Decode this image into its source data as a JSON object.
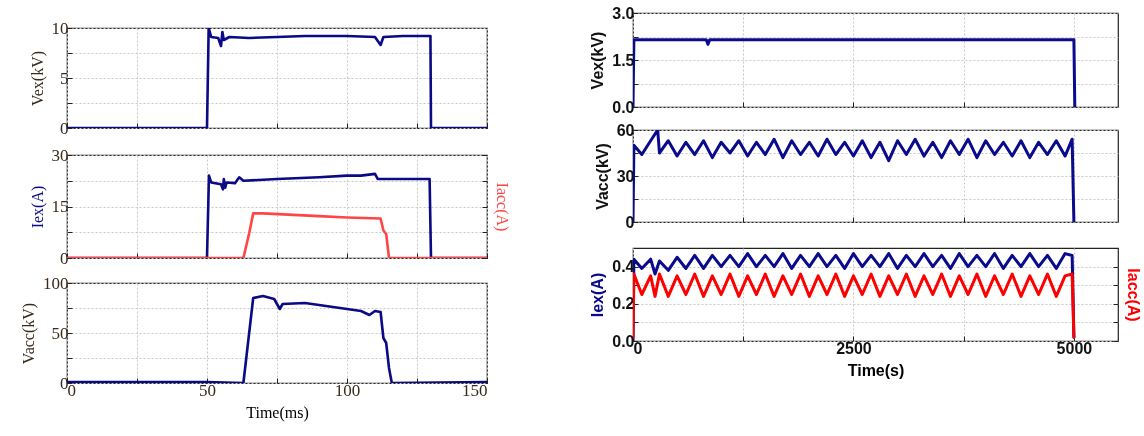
{
  "chart_data": [
    {
      "type": "line",
      "ylabel": "Vex(kV)",
      "xlim": [
        0,
        150
      ],
      "xticks": [
        0,
        {
          "value": 25,
          "label": null
        },
        50,
        {
          "value": 75,
          "label": null
        },
        100,
        {
          "value": 125,
          "label": null
        },
        150
      ],
      "ylim": [
        0,
        10
      ],
      "yticks": [
        0,
        {
          "value": 2.5,
          "label": null
        },
        5,
        {
          "value": 7.5,
          "label": null
        },
        10
      ],
      "grid": true,
      "tick_labels": "y",
      "series": [
        {
          "color": "#0a0a85",
          "x": [
            0,
            50,
            50.6,
            51.5,
            54,
            55,
            55.5,
            56,
            58,
            65,
            75,
            85,
            95,
            100,
            110,
            112,
            113,
            120,
            129.8,
            130,
            150
          ],
          "values": [
            0,
            0,
            10,
            9.1,
            9.0,
            8.2,
            9.6,
            8.8,
            9.1,
            9.0,
            9.1,
            9.2,
            9.2,
            9.2,
            9.1,
            8.3,
            9.1,
            9.2,
            9.2,
            0,
            0
          ]
        }
      ]
    },
    {
      "type": "line",
      "ylabel": "Iex(A)",
      "y2label": "Iacc(A)",
      "xlim": [
        0,
        150
      ],
      "xticks": [
        0,
        {
          "value": 25,
          "label": null
        },
        50,
        {
          "value": 75,
          "label": null
        },
        100,
        {
          "value": 125,
          "label": null
        },
        150
      ],
      "ylim": [
        0,
        30
      ],
      "yticks": [
        0,
        {
          "value": 7.5,
          "label": null
        },
        15,
        {
          "value": 22.5,
          "label": null
        },
        30
      ],
      "grid": true,
      "tick_labels": "y",
      "series": [
        {
          "color": "#0a0a85",
          "x": [
            0,
            50,
            50.7,
            51.5,
            55,
            55.7,
            56,
            56.5,
            57,
            60,
            61.5,
            63,
            75,
            90,
            100,
            105,
            110,
            111,
            115,
            129.5,
            130,
            150
          ],
          "values": [
            0,
            0,
            24,
            22,
            21.5,
            20,
            23,
            20.5,
            22,
            21.8,
            23.5,
            22.5,
            23,
            23.5,
            24,
            24,
            24.5,
            23,
            23,
            23,
            0,
            0
          ]
        },
        {
          "color": "#ff4545",
          "x": [
            0,
            63,
            65,
            66.5,
            70,
            90,
            100,
            112,
            113,
            114,
            115,
            150
          ],
          "values": [
            0,
            0,
            7,
            13,
            13,
            12.2,
            11.8,
            11.5,
            8,
            7,
            0,
            0
          ]
        }
      ]
    },
    {
      "type": "line",
      "ylabel": "Vacc(kV)",
      "xlabel": "Time(ms)",
      "xlim": [
        0,
        150
      ],
      "xticks": [
        0,
        {
          "value": 25,
          "label": null
        },
        50,
        {
          "value": 75,
          "label": null
        },
        100,
        {
          "value": 125,
          "label": null
        },
        150
      ],
      "ylim": [
        0,
        100
      ],
      "yticks": [
        0,
        {
          "value": 25,
          "label": null
        },
        50,
        {
          "value": 75,
          "label": null
        },
        100
      ],
      "grid": true,
      "series": [
        {
          "color": "#0a0a85",
          "x": [
            0,
            50,
            63,
            66.5,
            70,
            74,
            76,
            77,
            85,
            95,
            100,
            105,
            108,
            110,
            112,
            113,
            114,
            115,
            116,
            150
          ],
          "values": [
            1,
            1,
            0,
            85,
            87,
            84,
            74,
            79,
            80,
            76,
            74,
            72,
            68,
            72,
            71,
            45,
            40,
            15,
            0,
            1
          ]
        }
      ]
    },
    {
      "type": "line",
      "ylabel": "Vex(kV)",
      "xlim": [
        0,
        5500
      ],
      "xticks": [
        0,
        {
          "value": 1250,
          "label": null
        },
        2500,
        {
          "value": 3750,
          "label": null
        },
        5000
      ],
      "ylim": [
        0,
        3
      ],
      "yticks": [
        {
          "value": 0,
          "label": "0.0"
        },
        {
          "value": 0.75,
          "label": null
        },
        1.5,
        {
          "value": 2.25,
          "label": null
        },
        {
          "value": 3,
          "label": "3.0"
        }
      ],
      "grid": true,
      "tick_labels": "y",
      "series": [
        {
          "color": "#0a0a8c",
          "x": [
            0,
            10,
            830,
            850,
            870,
            5000,
            5010
          ],
          "values": [
            0,
            2.15,
            2.15,
            2.0,
            2.15,
            2.15,
            0
          ]
        }
      ]
    },
    {
      "type": "line",
      "ylabel": "Vacc(kV)",
      "xlim": [
        0,
        5500
      ],
      "xticks": [
        0,
        {
          "value": 1250,
          "label": null
        },
        2500,
        {
          "value": 3750,
          "label": null
        },
        5000
      ],
      "ylim": [
        0,
        60
      ],
      "yticks": [
        0,
        {
          "value": 15,
          "label": null
        },
        30,
        {
          "value": 45,
          "label": null
        },
        60
      ],
      "grid": true,
      "tick_labels": "y",
      "series": [
        {
          "color": "#0a0a8c",
          "x": [
            0,
            10,
            100,
            200,
            280,
            300,
            400,
            500,
            600,
            700,
            800,
            900,
            1000,
            1100,
            1200,
            1300,
            1400,
            1500,
            1600,
            1700,
            1800,
            1900,
            2000,
            2100,
            2200,
            2300,
            2400,
            2500,
            2600,
            2700,
            2800,
            2900,
            3000,
            3100,
            3200,
            3300,
            3400,
            3500,
            3600,
            3700,
            3800,
            3900,
            4000,
            4100,
            4200,
            4300,
            4400,
            4500,
            4600,
            4700,
            4800,
            4900,
            4980,
            5000
          ],
          "values": [
            0,
            50,
            44,
            53,
            60,
            45,
            53,
            43,
            52,
            44,
            53,
            42,
            52,
            45,
            53,
            43,
            52,
            44,
            54,
            42,
            53,
            44,
            52,
            43,
            54,
            44,
            52,
            43,
            53,
            42,
            52,
            40,
            53,
            44,
            54,
            43,
            52,
            42,
            53,
            44,
            54,
            42,
            53,
            44,
            52,
            43,
            53,
            42,
            52,
            44,
            53,
            43,
            54,
            0
          ]
        }
      ]
    },
    {
      "type": "line",
      "ylabel": "Iex(A)",
      "y2label": "Iacc(A)",
      "xlabel": "Time(s)",
      "xlim": [
        0,
        5500
      ],
      "xticks": [
        0,
        {
          "value": 1250,
          "label": null
        },
        2500,
        {
          "value": 3750,
          "label": null
        },
        5000
      ],
      "ylim": [
        0,
        0.5
      ],
      "yticks": [
        {
          "value": 0,
          "label": "0.0"
        },
        {
          "value": 0.1,
          "label": null
        },
        0.2,
        {
          "value": 0.3,
          "label": null
        },
        0.4
      ],
      "grid": true,
      "series": [
        {
          "color": "#0a0a8c",
          "x": [
            0,
            10,
            100,
            200,
            250,
            300,
            400,
            500,
            600,
            700,
            800,
            900,
            1000,
            1100,
            1200,
            1300,
            1400,
            1500,
            1600,
            1700,
            1800,
            1900,
            2000,
            2100,
            2200,
            2300,
            2400,
            2500,
            2600,
            2700,
            2800,
            2900,
            3000,
            3100,
            3200,
            3300,
            3400,
            3500,
            3600,
            3700,
            3800,
            3900,
            4000,
            4100,
            4200,
            4300,
            4400,
            4500,
            4600,
            4700,
            4800,
            4900,
            4980,
            5000
          ],
          "values": [
            0,
            0.44,
            0.39,
            0.44,
            0.36,
            0.43,
            0.38,
            0.45,
            0.39,
            0.46,
            0.39,
            0.46,
            0.4,
            0.46,
            0.4,
            0.47,
            0.4,
            0.46,
            0.4,
            0.47,
            0.39,
            0.46,
            0.4,
            0.47,
            0.4,
            0.46,
            0.39,
            0.47,
            0.4,
            0.46,
            0.4,
            0.47,
            0.39,
            0.46,
            0.4,
            0.47,
            0.4,
            0.46,
            0.39,
            0.47,
            0.4,
            0.46,
            0.4,
            0.47,
            0.39,
            0.46,
            0.4,
            0.47,
            0.4,
            0.46,
            0.39,
            0.47,
            0.46,
            0.02
          ]
        },
        {
          "color": "#ff0000",
          "x": [
            0,
            10,
            100,
            200,
            250,
            300,
            400,
            500,
            600,
            700,
            800,
            900,
            1000,
            1100,
            1200,
            1300,
            1400,
            1500,
            1600,
            1700,
            1800,
            1900,
            2000,
            2100,
            2200,
            2300,
            2400,
            2500,
            2600,
            2700,
            2800,
            2900,
            3000,
            3100,
            3200,
            3300,
            3400,
            3500,
            3600,
            3700,
            3800,
            3900,
            4000,
            4100,
            4200,
            4300,
            4400,
            4500,
            4600,
            4700,
            4800,
            4900,
            4980,
            5000
          ],
          "values": [
            0.02,
            0.36,
            0.25,
            0.35,
            0.24,
            0.36,
            0.24,
            0.35,
            0.25,
            0.36,
            0.24,
            0.35,
            0.25,
            0.36,
            0.24,
            0.35,
            0.25,
            0.36,
            0.24,
            0.35,
            0.25,
            0.36,
            0.24,
            0.35,
            0.25,
            0.36,
            0.24,
            0.35,
            0.25,
            0.36,
            0.24,
            0.35,
            0.25,
            0.36,
            0.24,
            0.35,
            0.25,
            0.36,
            0.24,
            0.35,
            0.25,
            0.36,
            0.24,
            0.35,
            0.25,
            0.36,
            0.24,
            0.35,
            0.25,
            0.36,
            0.24,
            0.35,
            0.36,
            0.02
          ]
        }
      ]
    }
  ]
}
